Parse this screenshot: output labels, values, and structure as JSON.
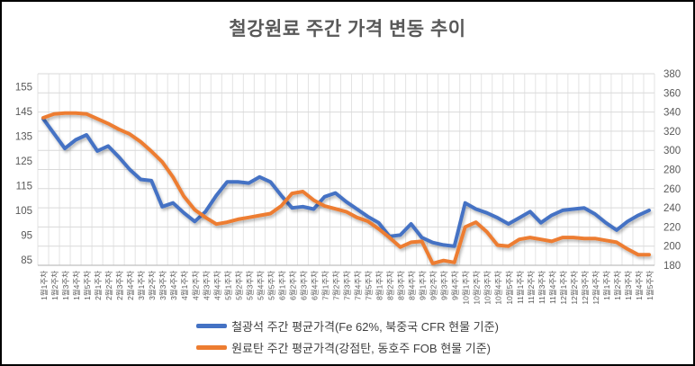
{
  "chart_data": {
    "type": "line",
    "title": "철강원료 주간 가격 변동 추이",
    "grid": "on",
    "legend_position": "bottom",
    "categories": [
      "1월1주차",
      "1월2주차",
      "1월3주차",
      "1월4주차",
      "1월5주차",
      "2월1주차",
      "2월2주차",
      "2월3주차",
      "2월4주차",
      "3월1주차",
      "3월2주차",
      "3월3주차",
      "3월4주차",
      "4월1주차",
      "4월2주차",
      "4월3주차",
      "4월4주차",
      "5월1주차",
      "5월2주차",
      "5월3주차",
      "5월4주차",
      "5월5주차",
      "6월1주차",
      "6월2주차",
      "6월3주차",
      "6월4주차",
      "7월1주차",
      "7월2주차",
      "7월3주차",
      "7월4주차",
      "7월5주차",
      "8월1주차",
      "8월2주차",
      "8월3주차",
      "8월4주차",
      "9월1주차",
      "9월2주차",
      "9월3주차",
      "9월4주차",
      "10월1주차",
      "10월2주차",
      "10월3주차",
      "10월4주차",
      "10월5주차",
      "11월1주차",
      "11월2주차",
      "11월3주차",
      "11월4주차",
      "12월1주차",
      "12월2주차",
      "12월3주차",
      "12월4주차",
      "1월1주차",
      "1월2주차",
      "1월3주차",
      "1월4주차",
      "1월5주차"
    ],
    "series": [
      {
        "name": "철광석 주간 평균가격(Fe 62%, 북중국 CFR 현물 기준)",
        "axis": "left",
        "color": "#4472C4",
        "values": [
          142,
          136,
          130,
          133.5,
          135.5,
          129,
          131,
          126.5,
          121.5,
          117.5,
          117,
          106.5,
          108,
          104,
          100.5,
          104.5,
          111,
          116.5,
          116.5,
          116,
          118.5,
          116.5,
          111,
          106,
          106.5,
          105.5,
          110.5,
          112,
          108.5,
          105.5,
          102.5,
          100,
          94.5,
          95,
          99.5,
          94,
          92,
          91,
          90.5,
          108,
          105.5,
          104,
          102,
          99.5,
          102,
          104.5,
          100,
          103,
          105,
          105.5,
          106,
          103.5,
          100,
          97,
          100.5,
          103,
          105
        ]
      },
      {
        "name": "원료탄 주간 평균가격(강점탄, 동호주 FOB 현물 기준)",
        "axis": "right",
        "color": "#ED7D31",
        "values": [
          334,
          338,
          339,
          339,
          338,
          333,
          328,
          322,
          317,
          309,
          299,
          288,
          272,
          252,
          238,
          230,
          223,
          225,
          228,
          230,
          232,
          234,
          242,
          255,
          257,
          248,
          242,
          239,
          236,
          230,
          226,
          218,
          209,
          199,
          204,
          205,
          182,
          185,
          183,
          220,
          225,
          215,
          201,
          200,
          207,
          209,
          207,
          205,
          209,
          209,
          208,
          208,
          206,
          204,
          197,
          191,
          191
        ]
      }
    ],
    "left_axis": {
      "ticks": [
        85,
        95,
        105,
        115,
        125,
        135,
        145,
        155
      ]
    },
    "right_axis": {
      "ticks": [
        180,
        200,
        220,
        240,
        260,
        280,
        300,
        320,
        340,
        360,
        380
      ]
    }
  }
}
